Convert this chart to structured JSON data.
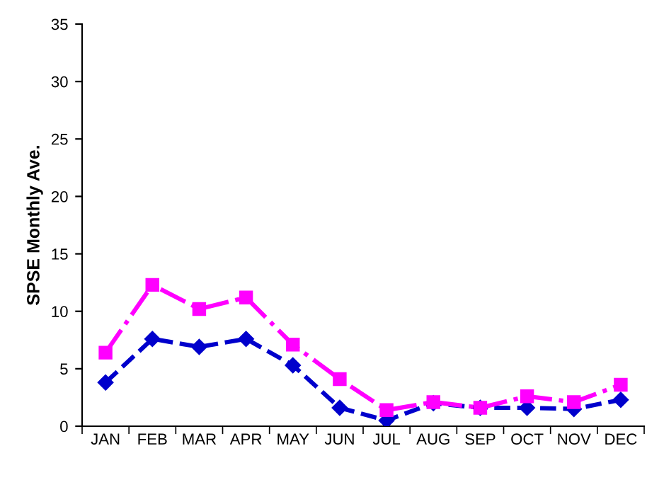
{
  "chart_data": {
    "type": "line",
    "ylabel": "SPSE Monthly Ave.",
    "categories": [
      "JAN",
      "FEB",
      "MAR",
      "APR",
      "MAY",
      "JUN",
      "JUL",
      "AUG",
      "SEP",
      "OCT",
      "NOV",
      "DEC"
    ],
    "series": [
      {
        "color": "#ff00ff",
        "marker": "square",
        "line_style": "dashdot",
        "values": [
          6.4,
          12.3,
          10.2,
          11.2,
          7.1,
          4.1,
          1.4,
          2.1,
          1.6,
          2.6,
          2.1,
          3.6
        ]
      },
      {
        "color": "#0000cc",
        "marker": "diamond",
        "line_style": "dashed",
        "values": [
          3.8,
          7.6,
          6.9,
          7.6,
          5.3,
          1.6,
          0.5,
          2.0,
          1.6,
          1.6,
          1.5,
          2.3
        ]
      }
    ],
    "ylim": [
      0,
      35
    ],
    "yticks": [
      0,
      5,
      10,
      15,
      20,
      25,
      30,
      35
    ],
    "grid": false,
    "legend": false
  }
}
